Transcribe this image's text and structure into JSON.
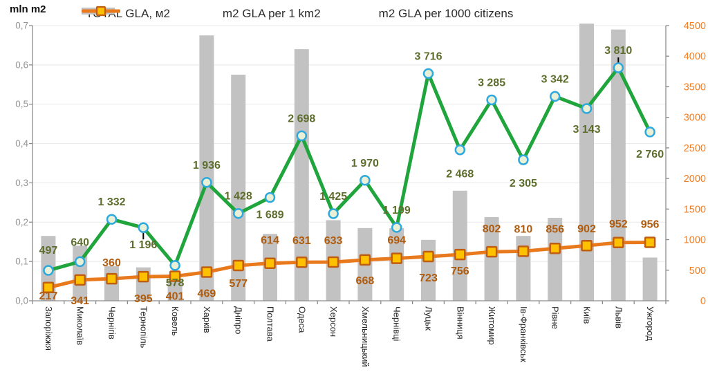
{
  "legend": {
    "items": [
      {
        "label": "TOTAL GLA, м2",
        "swatch": "bar"
      },
      {
        "label": "m2 GLA per 1 km2",
        "swatch": "line-circle"
      },
      {
        "label": "m2 GLA per 1000 citizens",
        "swatch": "line-square"
      }
    ]
  },
  "chart_data": {
    "type": "combo",
    "categories": [
      "Запоріжжя",
      "Миколаїв",
      "Чернігів",
      "Тернопіль",
      "Ковель",
      "Харків",
      "Дніпро",
      "Полтава",
      "Одеса",
      "Херсон",
      "Хмельницький",
      "Чернівці",
      "Луцьк",
      "Вінниця",
      "Житомир",
      "Ів-Франківськ",
      "Рівне",
      "Київ",
      "Львів",
      "Ужгород"
    ],
    "left_axis": {
      "title": "mln m2",
      "min": 0,
      "max": 0.7,
      "tick_labels": [
        "0,0",
        "0,1",
        "0,2",
        "0,3",
        "0,4",
        "0,5",
        "0,6",
        "0,7"
      ],
      "color": "#949494"
    },
    "right_axis": {
      "min": 0,
      "max": 4500,
      "tick_labels": [
        "0",
        "500",
        "1000",
        "1500",
        "2000",
        "2500",
        "3000",
        "3500",
        "4000",
        "4500"
      ],
      "color": "#f07d22"
    },
    "grid_color": "#e8e8e8",
    "axis_line_color": "#8c8c8c",
    "category_label_color": "#262626",
    "series": [
      {
        "name": "TOTAL GLA, м2",
        "type": "bar",
        "axis": "left",
        "color": "#c2c2c2",
        "values": [
          0.165,
          0.14,
          0.088,
          0.085,
          0.055,
          0.675,
          0.575,
          0.17,
          0.64,
          0.205,
          0.185,
          0.185,
          0.155,
          0.28,
          0.213,
          0.165,
          0.211,
          0.705,
          0.69,
          0.11
        ]
      },
      {
        "name": "m2 GLA per 1 km2",
        "type": "line",
        "axis": "right",
        "color": "#1fa53c",
        "marker": "circle",
        "marker_fill": "#eaf0d5",
        "marker_stroke": "#2ea9de",
        "label_color": "#5d6e2c",
        "label_above_off": -20,
        "label_below_off": 30,
        "values": [
          497,
          640,
          1332,
          1196,
          578,
          1936,
          1428,
          1689,
          2698,
          1425,
          1970,
          1199,
          3716,
          2468,
          3285,
          2305,
          3342,
          3143,
          3810,
          2760
        ],
        "labels": [
          "497",
          "640",
          "1 332",
          "1 196",
          "578",
          "1 936",
          "1 428",
          "1 689",
          "2 698",
          "1 425",
          "1 970",
          "1 199",
          "3 716",
          "2 468",
          "3 285",
          "2 305",
          "3 342",
          "3 143",
          "3 810",
          "2 760"
        ],
        "label_pos": [
          "above",
          "above",
          "above",
          "below",
          "below",
          "above",
          "above",
          "below",
          "above",
          "above",
          "above",
          "above",
          "above",
          "below",
          "above",
          "below",
          "above",
          "below",
          "above",
          "below"
        ],
        "label_dy": [
          -4,
          -3,
          0,
          0,
          0,
          0,
          0,
          0,
          0,
          0,
          0,
          0,
          0,
          10,
          0,
          9,
          0,
          5,
          0,
          7
        ]
      },
      {
        "name": "m2 GLA per 1000 citizens",
        "type": "line",
        "axis": "right",
        "color": "#e8791c",
        "marker": "square",
        "marker_fill": "#ffc000",
        "marker_stroke": "#bf5d12",
        "label_color": "#b05c0f",
        "label_above_off": -18,
        "label_below_off": 22,
        "values": [
          217,
          341,
          360,
          395,
          401,
          469,
          577,
          614,
          631,
          633,
          668,
          694,
          723,
          756,
          802,
          810,
          856,
          902,
          952,
          956
        ],
        "labels": [
          "217",
          "341",
          "360",
          "395",
          "401",
          "469",
          "577",
          "614",
          "631",
          "633",
          "668",
          "694",
          "723",
          "756",
          "802",
          "810",
          "856",
          "902",
          "952",
          "956"
        ],
        "label_pos": [
          "below",
          "below",
          "above",
          "below",
          "below",
          "below",
          "below",
          "above",
          "above",
          "above",
          "below",
          "above",
          "below",
          "below",
          "above",
          "above",
          "above",
          "above",
          "above",
          "above"
        ],
        "label_dy": [
          -5,
          13,
          0,
          15,
          12,
          14,
          9,
          -10,
          -8,
          -8,
          13,
          -3,
          14,
          7,
          -10,
          -9,
          -5,
          -1,
          -4,
          -3
        ]
      }
    ],
    "annotations": [
      {
        "series": 1,
        "index": 3,
        "dy1": 2,
        "dy2": 17,
        "color": "#000000"
      },
      {
        "series": 1,
        "index": 18,
        "dy1": -15,
        "dy2": -1,
        "color": "#000000"
      }
    ]
  }
}
